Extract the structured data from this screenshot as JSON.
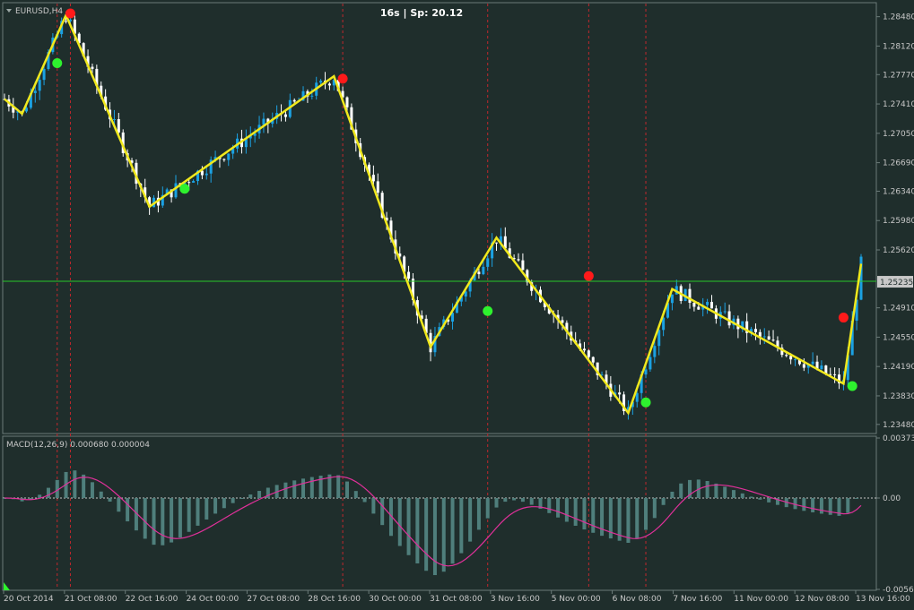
{
  "window": {
    "symbol_label": "EURUSD,H4",
    "status": "16s | Sp: 20.12",
    "current_price": "1.25235"
  },
  "colors": {
    "background": "#1f2e2c",
    "bull_candle": "#1ba1e2",
    "bear_candle": "#ffffff",
    "zigzag": "#f0e81c",
    "price_line": "#29c629",
    "period_separator": "#c0272d",
    "macd_hist": "#4f7f7c",
    "macd_signal": "#e0309a",
    "marker_high": "#ff1a1a",
    "marker_low": "#2ef22e"
  },
  "icons": {
    "symbol_menu": "triangle-down-icon",
    "indicator_corner": "green-triangle-icon"
  },
  "chart_data": [
    {
      "type": "candlestick",
      "name": "price-chart",
      "y_ticks": [
        "1.28480",
        "1.28120",
        "1.27770",
        "1.27410",
        "1.27050",
        "1.26690",
        "1.26340",
        "1.25980",
        "1.25620",
        "1.24910",
        "1.24550",
        "1.24190",
        "1.23830",
        "1.23480"
      ],
      "y_tick_values": [
        1.2848,
        1.2812,
        1.2777,
        1.2741,
        1.2705,
        1.2669,
        1.2634,
        1.2598,
        1.2562,
        1.2491,
        1.2455,
        1.2419,
        1.2383,
        1.2348
      ],
      "ylim": [
        1.2339,
        1.2863
      ],
      "current_price": 1.25235,
      "x_labels": [
        "20 Oct 2014",
        "21 Oct 08:00",
        "22 Oct 16:00",
        "24 Oct 00:00",
        "27 Oct 08:00",
        "28 Oct 16:00",
        "30 Oct 00:00",
        "31 Oct 08:00",
        "3 Nov 16:00",
        "5 Nov 00:00",
        "6 Nov 08:00",
        "7 Nov 16:00",
        "11 Nov 00:00",
        "12 Nov 08:00",
        "13 Nov 16:00"
      ],
      "bar_count": 196,
      "zigzag": [
        {
          "bar": 0,
          "price": 1.2747
        },
        {
          "bar": 4,
          "price": 1.2729
        },
        {
          "bar": 14,
          "price": 1.285
        },
        {
          "bar": 33,
          "price": 1.2615
        },
        {
          "bar": 75,
          "price": 1.2775
        },
        {
          "bar": 97,
          "price": 1.2443
        },
        {
          "bar": 112,
          "price": 1.2577
        },
        {
          "bar": 142,
          "price": 1.2362
        },
        {
          "bar": 152,
          "price": 1.2514
        },
        {
          "bar": 191,
          "price": 1.2398
        },
        {
          "bar": 195,
          "price": 1.2545
        }
      ],
      "high_markers": [
        {
          "bar": 15,
          "price": 1.2852
        },
        {
          "bar": 77,
          "price": 1.2772
        },
        {
          "bar": 133,
          "price": 1.253
        },
        {
          "bar": 191,
          "price": 1.2479
        }
      ],
      "low_markers": [
        {
          "bar": 12,
          "price": 1.2791
        },
        {
          "bar": 41,
          "price": 1.2637
        },
        {
          "bar": 110,
          "price": 1.2487
        },
        {
          "bar": 146,
          "price": 1.2375
        },
        {
          "bar": 193,
          "price": 1.2395
        }
      ],
      "separators_bar": [
        12,
        15,
        77,
        110,
        133,
        146
      ]
    },
    {
      "type": "histogram",
      "name": "macd-panel",
      "label": "MACD(12,26,9) 0.000680 0.000004",
      "y_ticks": [
        "0.003738",
        "0.00",
        "-0.005691"
      ],
      "y_tick_values": [
        0.003738,
        0.0,
        -0.005691
      ]
    }
  ]
}
